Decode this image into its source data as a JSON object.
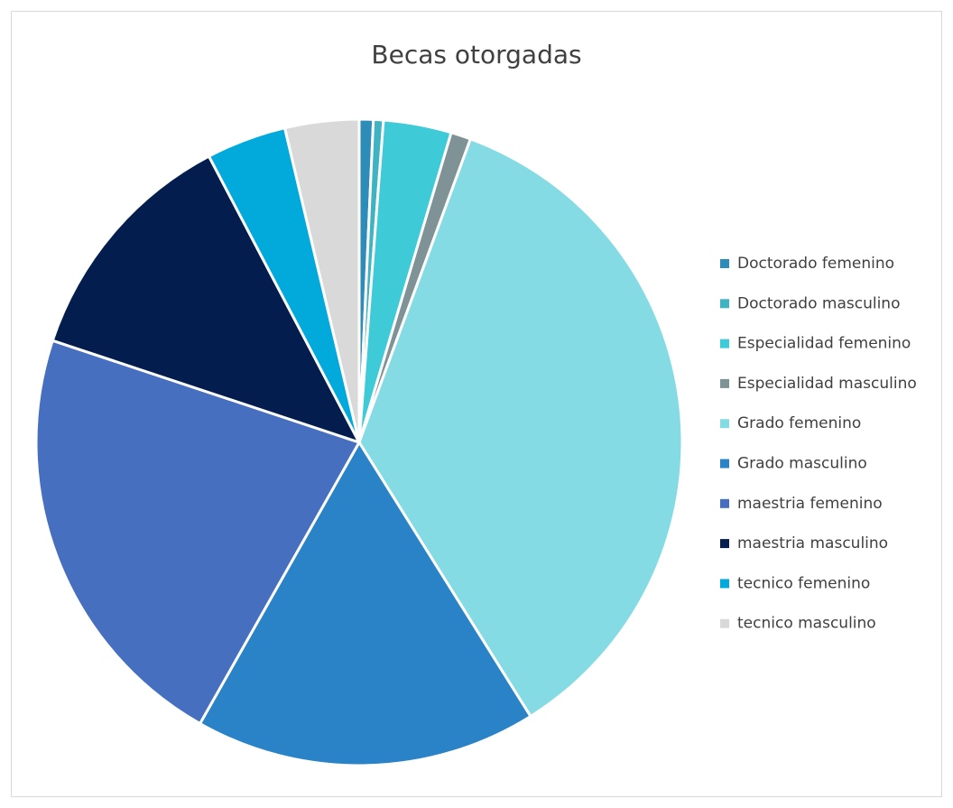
{
  "chart_data": {
    "type": "pie",
    "title": "Becas otorgadas",
    "categories": [
      "Doctorado femenino",
      "Doctorado masculino",
      "Especialidad femenino",
      "Especialidad masculino",
      "Grado femenino",
      "Grado masculino",
      "maestria femenino",
      "maestria masculino",
      "tecnico femenino",
      "tecnico masculino"
    ],
    "values": [
      0.7,
      0.5,
      3.4,
      1.0,
      35.5,
      17.1,
      21.9,
      12.2,
      4.0,
      3.7
    ],
    "colors": [
      "#2e8cb8",
      "#3fb3c2",
      "#3fcad8",
      "#7f9397",
      "#84dbe3",
      "#2a83c6",
      "#4670bf",
      "#031d4e",
      "#02aadc",
      "#d9d9d9"
    ],
    "legend": "right"
  }
}
